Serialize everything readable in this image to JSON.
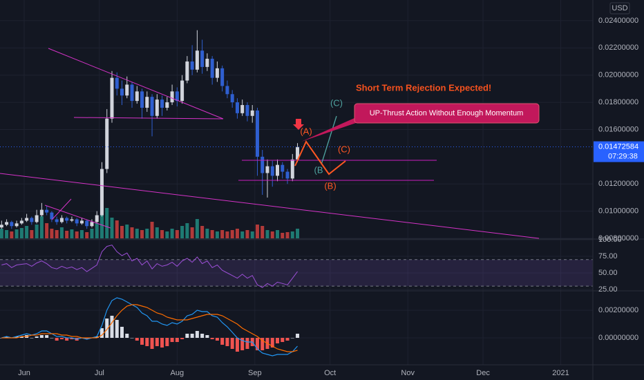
{
  "header": {
    "currency": "USD"
  },
  "annotations": {
    "headline": "Short Term Rejection Expected!",
    "callout": "UP-Thrust Action Without Enough Momentum",
    "wave_a": "(A)",
    "wave_b": "(B)",
    "wave_c": "(C)",
    "alt_wave_b": "(B",
    "alt_wave_c": "(C)"
  },
  "chart_data": [
    {
      "type": "candlestick",
      "xlim": [
        -0.32,
        117.9
      ],
      "ylim": [
        0.008,
        0.02552
      ],
      "yticks": [
        {
          "value": 0.008,
          "label": "0.00800000"
        },
        {
          "value": 0.01,
          "label": "0.01000000"
        },
        {
          "value": 0.012,
          "label": "0.01200000"
        },
        {
          "value": 0.016,
          "label": "0.01600000"
        },
        {
          "value": 0.018,
          "label": "0.01800000"
        },
        {
          "value": 0.02,
          "label": "0.02000000"
        },
        {
          "value": 0.022,
          "label": "0.02200000"
        },
        {
          "value": 0.024,
          "label": "0.02400000"
        }
      ],
      "up_color": "#d1d4dc",
      "down_color": "#2f5fd0",
      "candles": [
        [
          0.0088,
          0.0093,
          0.0087,
          0.009
        ],
        [
          0.009,
          0.0094,
          0.0089,
          0.0092
        ],
        [
          0.0092,
          0.0093,
          0.0087,
          0.0089
        ],
        [
          0.0089,
          0.0093,
          0.0088,
          0.0091
        ],
        [
          0.0091,
          0.0095,
          0.009,
          0.0093
        ],
        [
          0.0093,
          0.0098,
          0.0092,
          0.0095
        ],
        [
          0.0095,
          0.0096,
          0.009,
          0.0092
        ],
        [
          0.0092,
          0.0101,
          0.0091,
          0.0097
        ],
        [
          0.0097,
          0.0106,
          0.0096,
          0.0101
        ],
        [
          0.0101,
          0.0104,
          0.0097,
          0.0099
        ],
        [
          0.0099,
          0.01,
          0.0092,
          0.0094
        ],
        [
          0.0094,
          0.0096,
          0.009,
          0.0092
        ],
        [
          0.0092,
          0.0097,
          0.0091,
          0.0095
        ],
        [
          0.0095,
          0.0096,
          0.0091,
          0.0093
        ],
        [
          0.0093,
          0.0096,
          0.0092,
          0.0094
        ],
        [
          0.0094,
          0.0095,
          0.0089,
          0.0091
        ],
        [
          0.0091,
          0.0095,
          0.009,
          0.0093
        ],
        [
          0.0093,
          0.0094,
          0.0087,
          0.0089
        ],
        [
          0.0089,
          0.0094,
          0.0088,
          0.0092
        ],
        [
          0.0092,
          0.01,
          0.0091,
          0.0097
        ],
        [
          0.0097,
          0.0136,
          0.0096,
          0.0131
        ],
        [
          0.0131,
          0.0175,
          0.0128,
          0.0168
        ],
        [
          0.0168,
          0.0203,
          0.0165,
          0.0198
        ],
        [
          0.0198,
          0.0202,
          0.0185,
          0.019
        ],
        [
          0.019,
          0.0196,
          0.0178,
          0.0185
        ],
        [
          0.0185,
          0.0199,
          0.0183,
          0.0193
        ],
        [
          0.0193,
          0.0195,
          0.0176,
          0.0181
        ],
        [
          0.0181,
          0.0192,
          0.0179,
          0.0188
        ],
        [
          0.0188,
          0.019,
          0.0168,
          0.0176
        ],
        [
          0.0176,
          0.0188,
          0.0173,
          0.0184
        ],
        [
          0.0184,
          0.0186,
          0.0155,
          0.017
        ],
        [
          0.017,
          0.0186,
          0.0168,
          0.0182
        ],
        [
          0.0182,
          0.0185,
          0.017,
          0.0176
        ],
        [
          0.0176,
          0.0184,
          0.0174,
          0.018
        ],
        [
          0.018,
          0.0193,
          0.0178,
          0.0188
        ],
        [
          0.0188,
          0.0191,
          0.0177,
          0.0181
        ],
        [
          0.0181,
          0.02,
          0.0179,
          0.0196
        ],
        [
          0.0196,
          0.0214,
          0.0194,
          0.021
        ],
        [
          0.021,
          0.0222,
          0.02,
          0.0204
        ],
        [
          0.0204,
          0.0233,
          0.0202,
          0.0218
        ],
        [
          0.0218,
          0.0226,
          0.0201,
          0.0206
        ],
        [
          0.0206,
          0.0216,
          0.0203,
          0.0212
        ],
        [
          0.0212,
          0.0214,
          0.0193,
          0.0198
        ],
        [
          0.0198,
          0.021,
          0.0195,
          0.0205
        ],
        [
          0.0205,
          0.0207,
          0.0188,
          0.0192
        ],
        [
          0.0192,
          0.0196,
          0.0183,
          0.0186
        ],
        [
          0.0186,
          0.0189,
          0.0176,
          0.018
        ],
        [
          0.018,
          0.0183,
          0.0168,
          0.0172
        ],
        [
          0.0172,
          0.0182,
          0.017,
          0.0178
        ],
        [
          0.0178,
          0.018,
          0.0166,
          0.017
        ],
        [
          0.017,
          0.0178,
          0.0165,
          0.0174
        ],
        [
          0.0174,
          0.0176,
          0.0126,
          0.014
        ],
        [
          0.014,
          0.0145,
          0.0112,
          0.0128
        ],
        [
          0.0128,
          0.0138,
          0.011,
          0.0133
        ],
        [
          0.0133,
          0.0137,
          0.0118,
          0.0126
        ],
        [
          0.0126,
          0.0138,
          0.0122,
          0.0134
        ],
        [
          0.0134,
          0.0136,
          0.0124,
          0.0129
        ],
        [
          0.0129,
          0.0131,
          0.012,
          0.0124
        ],
        [
          0.0124,
          0.0142,
          0.0122,
          0.0138
        ],
        [
          0.0138,
          0.015,
          0.0136,
          0.0147
        ]
      ],
      "volume": {
        "ylim": [
          0,
          345
        ],
        "up_color": "#1f7a73",
        "down_color": "#b23a3a",
        "values": [
          14,
          12,
          10,
          13,
          15,
          18,
          12,
          20,
          32,
          22,
          14,
          12,
          16,
          11,
          13,
          10,
          12,
          9,
          14,
          22,
          72,
          44,
          30,
          26,
          18,
          20,
          16,
          14,
          12,
          14,
          24,
          16,
          12,
          10,
          14,
          12,
          18,
          22,
          16,
          28,
          18,
          14,
          12,
          10,
          12,
          10,
          12,
          14,
          10,
          12,
          10,
          20,
          18,
          12,
          10,
          12,
          8,
          9,
          10,
          14
        ]
      },
      "last_price": {
        "value": 0.01472584,
        "label": "0.01472584",
        "countdown": "07:29:38",
        "color": "#2962ff"
      }
    },
    {
      "type": "line",
      "xlim": [
        -0.32,
        117.9
      ],
      "ylim": [
        22.9,
        100
      ],
      "color": "#9c4fd6",
      "band": [
        30,
        70
      ],
      "yticks": [
        {
          "value": 25,
          "label": "25.00"
        },
        {
          "value": 50,
          "label": "50.00"
        },
        {
          "value": 75,
          "label": "75.00"
        },
        {
          "value": 100,
          "label": "100.00"
        }
      ],
      "values": [
        62,
        64,
        58,
        62,
        63,
        64,
        60,
        65,
        68,
        64,
        58,
        56,
        60,
        57,
        59,
        55,
        58,
        52,
        57,
        62,
        82,
        90,
        92,
        82,
        76,
        80,
        68,
        72,
        62,
        68,
        56,
        64,
        60,
        62,
        66,
        60,
        68,
        72,
        66,
        74,
        64,
        68,
        58,
        62,
        54,
        50,
        46,
        42,
        48,
        42,
        46,
        32,
        28,
        34,
        30,
        36,
        34,
        32,
        42,
        52
      ]
    },
    {
      "type": "macd",
      "xlim": [
        -0.32,
        117.9
      ],
      "ylim": [
        -0.00195,
        0.00335
      ],
      "yticks": [
        {
          "value": 0,
          "label": "0.00000000"
        },
        {
          "value": 0.002,
          "label": "0.00200000"
        }
      ],
      "xticks": [
        {
          "value": 4.5,
          "label": "Jun"
        },
        {
          "value": 19.5,
          "label": "Jul"
        },
        {
          "value": 35,
          "label": "Aug"
        },
        {
          "value": 50.5,
          "label": "Sep"
        },
        {
          "value": 65.5,
          "label": "Oct"
        },
        {
          "value": 81,
          "label": "Nov"
        },
        {
          "value": 96,
          "label": "Dec"
        },
        {
          "value": 111.5,
          "label": "2021"
        }
      ],
      "series": [
        {
          "color": "#2196f3",
          "values": [
            0,
            0.0001,
            0,
            0.0001,
            0.0002,
            0.0003,
            0.0002,
            0.0003,
            0.0005,
            0.0005,
            0.0003,
            0.0001,
            0.0001,
            0,
            0,
            -0.0001,
            0,
            -0.0001,
            0,
            0.0001,
            0.0009,
            0.002,
            0.0027,
            0.0029,
            0.0028,
            0.0026,
            0.0024,
            0.0022,
            0.0018,
            0.0016,
            0.0012,
            0.0012,
            0.001,
            0.0009,
            0.0011,
            0.001,
            0.0012,
            0.0016,
            0.0017,
            0.002,
            0.0019,
            0.0019,
            0.0016,
            0.0015,
            0.0011,
            0.0008,
            0.0004,
            0,
            -0.0002,
            -0.0003,
            -0.0003,
            -0.0008,
            -0.0011,
            -0.0012,
            -0.0013,
            -0.0012,
            -0.0012,
            -0.0012,
            -0.001,
            -0.0006
          ]
        },
        {
          "color": "#ff6d00",
          "values": [
            0,
            0,
            0,
            0,
            0.0001,
            0.0001,
            0.0002,
            0.0002,
            0.0003,
            0.0003,
            0.0003,
            0.0003,
            0.0002,
            0.0002,
            0.0001,
            0.0001,
            0,
            0,
            0,
            0,
            0.0002,
            0.0006,
            0.0011,
            0.0016,
            0.002,
            0.0023,
            0.0024,
            0.0024,
            0.0023,
            0.0022,
            0.002,
            0.0018,
            0.0017,
            0.0015,
            0.0014,
            0.0013,
            0.0013,
            0.0013,
            0.0014,
            0.0015,
            0.0016,
            0.0017,
            0.0017,
            0.0017,
            0.0016,
            0.0014,
            0.0012,
            0.001,
            0.0007,
            0.0005,
            0.0003,
            0.0001,
            -0.0002,
            -0.0004,
            -0.0006,
            -0.0008,
            -0.0009,
            -0.001,
            -0.001,
            -0.0009
          ]
        }
      ],
      "histogram": {
        "up_color": "#d9dde6",
        "down_color": "#ef5350",
        "values": [
          0,
          0.0001,
          0,
          0.0001,
          0.0001,
          0.0002,
          0,
          0.0001,
          0.0002,
          0.0002,
          0,
          -0.0002,
          -0.0001,
          -0.0002,
          -0.0001,
          -0.0002,
          0,
          -0.0001,
          0,
          0.0001,
          0.0007,
          0.0014,
          0.0016,
          0.0013,
          0.0008,
          0.0003,
          0,
          -0.0002,
          -0.0005,
          -0.0006,
          -0.0008,
          -0.0006,
          -0.0007,
          -0.0006,
          -0.0003,
          -0.0003,
          -0.0001,
          0.0003,
          0.0003,
          0.0005,
          0.0003,
          0.0002,
          -0.0001,
          -0.0002,
          -0.0005,
          -0.0006,
          -0.0008,
          -0.001,
          -0.0009,
          -0.0008,
          -0.0006,
          -0.0009,
          -0.0009,
          -0.0008,
          -0.0007,
          -0.0004,
          -0.0003,
          -0.0002,
          0,
          0.0003
        ]
      }
    }
  ]
}
